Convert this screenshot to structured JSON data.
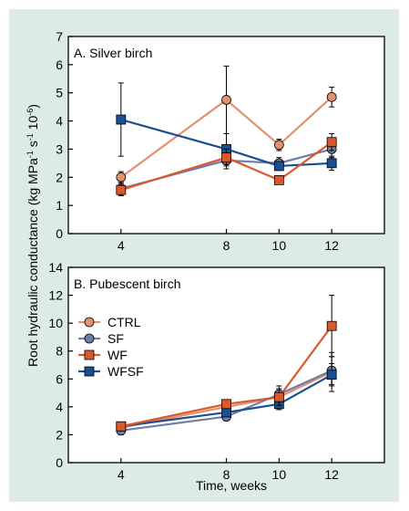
{
  "figure": {
    "ylabel_main": "Root hydraulic conductance (kg MPa",
    "ylabel_sup1": "-1",
    "ylabel_mid": " s",
    "ylabel_sup2": "-1",
    "ylabel_tail": " 10",
    "ylabel_sup3": "-6",
    "ylabel_end": ")",
    "xlabel": "Time, weeks"
  },
  "colors": {
    "background": "#dcebe3",
    "CTRL": "#e19170",
    "SF": "#6f7ea8",
    "WF": "#d9592e",
    "WFSF": "#1c4f8f"
  },
  "legend": [
    {
      "name": "CTRL",
      "marker": "circle"
    },
    {
      "name": "SF",
      "marker": "circle"
    },
    {
      "name": "WF",
      "marker": "square"
    },
    {
      "name": "WFSF",
      "marker": "square"
    }
  ],
  "chart_data": [
    {
      "type": "line",
      "title": "A. Silver birch",
      "x": [
        4,
        8,
        10,
        12
      ],
      "xticks": [
        "4",
        "8",
        "10",
        "12"
      ],
      "xlim": [
        2,
        14
      ],
      "ylim": [
        0,
        7
      ],
      "yticks": [
        "0",
        "1",
        "2",
        "3",
        "4",
        "5",
        "6",
        "7"
      ],
      "grid": false,
      "series": [
        {
          "name": "CTRL",
          "values": [
            2.0,
            4.75,
            3.15,
            4.85
          ],
          "errors": [
            0.2,
            1.2,
            0.2,
            0.35
          ]
        },
        {
          "name": "SF",
          "values": [
            1.6,
            2.6,
            2.5,
            3.0
          ],
          "errors": [
            0.25,
            0.3,
            0.2,
            0.3
          ]
        },
        {
          "name": "WF",
          "values": [
            1.55,
            2.7,
            1.9,
            3.25
          ],
          "errors": [
            0.2,
            0.3,
            0.1,
            0.3
          ]
        },
        {
          "name": "WFSF",
          "values": [
            4.05,
            3.0,
            2.4,
            2.5
          ],
          "errors": [
            1.3,
            0.55,
            0.15,
            0.25
          ]
        }
      ]
    },
    {
      "type": "line",
      "title": "B. Pubescent birch",
      "x": [
        4,
        8,
        10,
        12
      ],
      "xticks": [
        "4",
        "8",
        "10",
        "12"
      ],
      "xlim": [
        2,
        14
      ],
      "ylim": [
        0,
        14
      ],
      "yticks": [
        "0",
        "2",
        "4",
        "6",
        "8",
        "10",
        "12",
        "14"
      ],
      "grid": false,
      "legend_position": "top-left",
      "series": [
        {
          "name": "CTRL",
          "values": [
            2.5,
            4.0,
            4.7,
            6.5
          ],
          "errors": [
            0.4,
            0.5,
            0.8,
            1.4
          ]
        },
        {
          "name": "SF",
          "values": [
            2.3,
            3.3,
            4.9,
            6.6
          ],
          "errors": [
            0.3,
            0.3,
            0.4,
            1.0
          ]
        },
        {
          "name": "WF",
          "values": [
            2.6,
            4.2,
            4.7,
            9.8
          ],
          "errors": [
            0.3,
            0.3,
            0.6,
            2.2
          ]
        },
        {
          "name": "WFSF",
          "values": [
            2.6,
            3.6,
            4.2,
            6.3
          ],
          "errors": [
            0.3,
            0.3,
            0.4,
            0.8
          ]
        }
      ]
    }
  ]
}
